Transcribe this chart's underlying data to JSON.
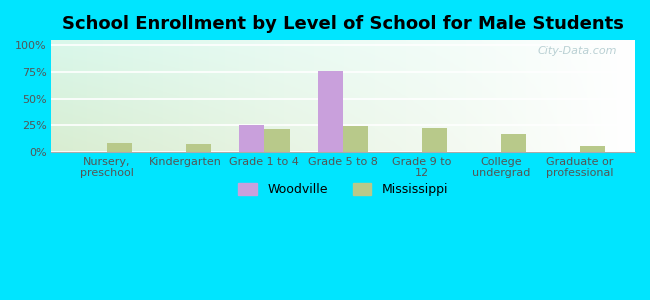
{
  "title": "School Enrollment by Level of School for Male Students",
  "categories": [
    "Nursery,\npreschool",
    "Kindergarten",
    "Grade 1 to 4",
    "Grade 5 to 8",
    "Grade 9 to\n12",
    "College\nundergrad",
    "Graduate or\nprofessional"
  ],
  "woodville": [
    0,
    0,
    25,
    76,
    0,
    0,
    0
  ],
  "mississippi": [
    8,
    7,
    21,
    24,
    22,
    17,
    5
  ],
  "woodville_color": "#c9a0dc",
  "mississippi_color": "#b8c98a",
  "ylabel_ticks": [
    "0%",
    "25%",
    "50%",
    "75%",
    "100%"
  ],
  "ytick_vals": [
    0,
    25,
    50,
    75,
    100
  ],
  "ylim": [
    0,
    105
  ],
  "outer_bg": "#00e5ff",
  "watermark": "City-Data.com",
  "bar_width": 0.32,
  "title_fontsize": 13,
  "tick_fontsize": 8,
  "legend_fontsize": 9
}
